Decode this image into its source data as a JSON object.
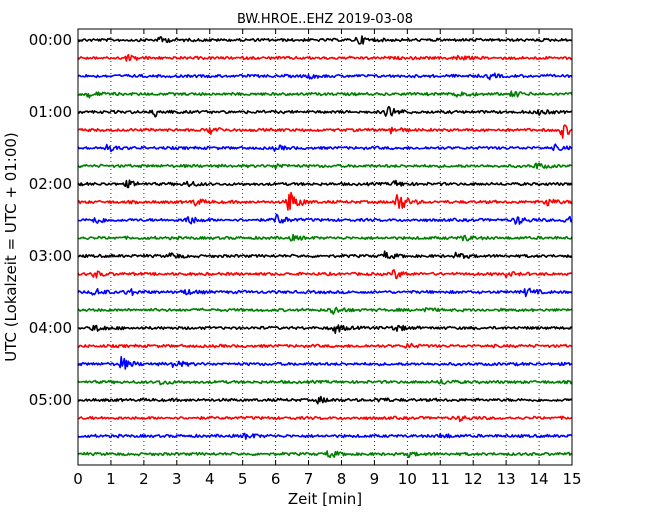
{
  "chart_data": {
    "type": "line",
    "title": "BW.HROE..EHZ 2019-03-08",
    "xlabel": "Zeit  [min]",
    "ylabel": "UTC (Lokalzeit = UTC + 01:00)",
    "xlim": [
      0,
      15
    ],
    "x_ticks": [
      "0",
      "1",
      "2",
      "3",
      "4",
      "5",
      "6",
      "7",
      "8",
      "9",
      "10",
      "11",
      "12",
      "13",
      "14",
      "15"
    ],
    "y_tick_labels": [
      "00:00",
      "01:00",
      "02:00",
      "03:00",
      "04:00",
      "05:00"
    ],
    "grid": "vertical dotted",
    "trace_interval_min": 15,
    "trace_colors": [
      "#000000",
      "#ff0000",
      "#0000ff",
      "#008000"
    ],
    "series": [
      {
        "start": "00:00",
        "events": [
          [
            2.5,
            0.4
          ],
          [
            8.5,
            0.6
          ]
        ]
      },
      {
        "start": "00:15",
        "events": [
          [
            1.5,
            0.35
          ],
          [
            11.5,
            0.3
          ]
        ]
      },
      {
        "start": "00:30",
        "events": [
          [
            7.0,
            0.3
          ],
          [
            12.5,
            0.3
          ]
        ]
      },
      {
        "start": "00:45",
        "events": [
          [
            0.3,
            0.4
          ],
          [
            11.5,
            0.6
          ],
          [
            13.2,
            0.35
          ]
        ]
      },
      {
        "start": "01:00",
        "events": [
          [
            2.3,
            0.6
          ],
          [
            9.4,
            0.9
          ],
          [
            13.9,
            0.5
          ]
        ]
      },
      {
        "start": "01:15",
        "events": [
          [
            4.0,
            0.5
          ],
          [
            9.5,
            0.4
          ],
          [
            14.7,
            0.9
          ]
        ]
      },
      {
        "start": "01:30",
        "events": [
          [
            0.9,
            0.4
          ],
          [
            6.0,
            0.3
          ],
          [
            14.5,
            0.3
          ]
        ]
      },
      {
        "start": "01:45",
        "events": [
          [
            6.0,
            0.3
          ],
          [
            13.9,
            0.4
          ]
        ]
      },
      {
        "start": "02:00",
        "events": [
          [
            1.5,
            0.4
          ],
          [
            3.3,
            0.4
          ],
          [
            9.6,
            0.4
          ]
        ]
      },
      {
        "start": "02:15",
        "events": [
          [
            3.5,
            0.5
          ],
          [
            6.4,
            1.6
          ],
          [
            9.7,
            1.4
          ],
          [
            14.2,
            0.6
          ]
        ]
      },
      {
        "start": "02:30",
        "events": [
          [
            0.5,
            0.5
          ],
          [
            3.3,
            0.7
          ],
          [
            6.0,
            0.8
          ],
          [
            13.3,
            0.6
          ],
          [
            14.8,
            0.7
          ]
        ]
      },
      {
        "start": "02:45",
        "events": [
          [
            6.5,
            0.3
          ],
          [
            11.7,
            0.4
          ]
        ]
      },
      {
        "start": "03:00",
        "events": [
          [
            2.8,
            0.4
          ],
          [
            9.3,
            0.5
          ],
          [
            11.5,
            0.4
          ]
        ]
      },
      {
        "start": "03:15",
        "events": [
          [
            0.5,
            0.4
          ],
          [
            9.6,
            0.6
          ],
          [
            13.0,
            0.3
          ]
        ]
      },
      {
        "start": "03:30",
        "events": [
          [
            0.5,
            0.5
          ],
          [
            1.5,
            0.5
          ],
          [
            3.2,
            0.4
          ],
          [
            13.6,
            0.5
          ]
        ]
      },
      {
        "start": "03:45",
        "events": [
          [
            7.7,
            0.6
          ],
          [
            10.5,
            0.3
          ]
        ]
      },
      {
        "start": "04:00",
        "events": [
          [
            0.5,
            0.5
          ],
          [
            7.8,
            0.6
          ],
          [
            9.6,
            0.5
          ]
        ]
      },
      {
        "start": "04:15",
        "events": [
          [
            10.0,
            0.3
          ]
        ]
      },
      {
        "start": "04:30",
        "events": [
          [
            1.3,
            0.9
          ],
          [
            2.9,
            0.5
          ]
        ]
      },
      {
        "start": "04:45",
        "events": [
          [
            2.5,
            0.3
          ],
          [
            11.0,
            0.3
          ]
        ]
      },
      {
        "start": "05:00",
        "events": [
          [
            7.3,
            0.4
          ],
          [
            9.1,
            0.3
          ]
        ]
      },
      {
        "start": "05:15",
        "events": [
          [
            11.6,
            0.3
          ]
        ]
      },
      {
        "start": "05:30",
        "events": [
          [
            5.1,
            0.4
          ],
          [
            11.0,
            0.3
          ]
        ]
      },
      {
        "start": "05:45",
        "events": [
          [
            7.6,
            0.5
          ],
          [
            10.0,
            0.3
          ]
        ]
      }
    ]
  }
}
